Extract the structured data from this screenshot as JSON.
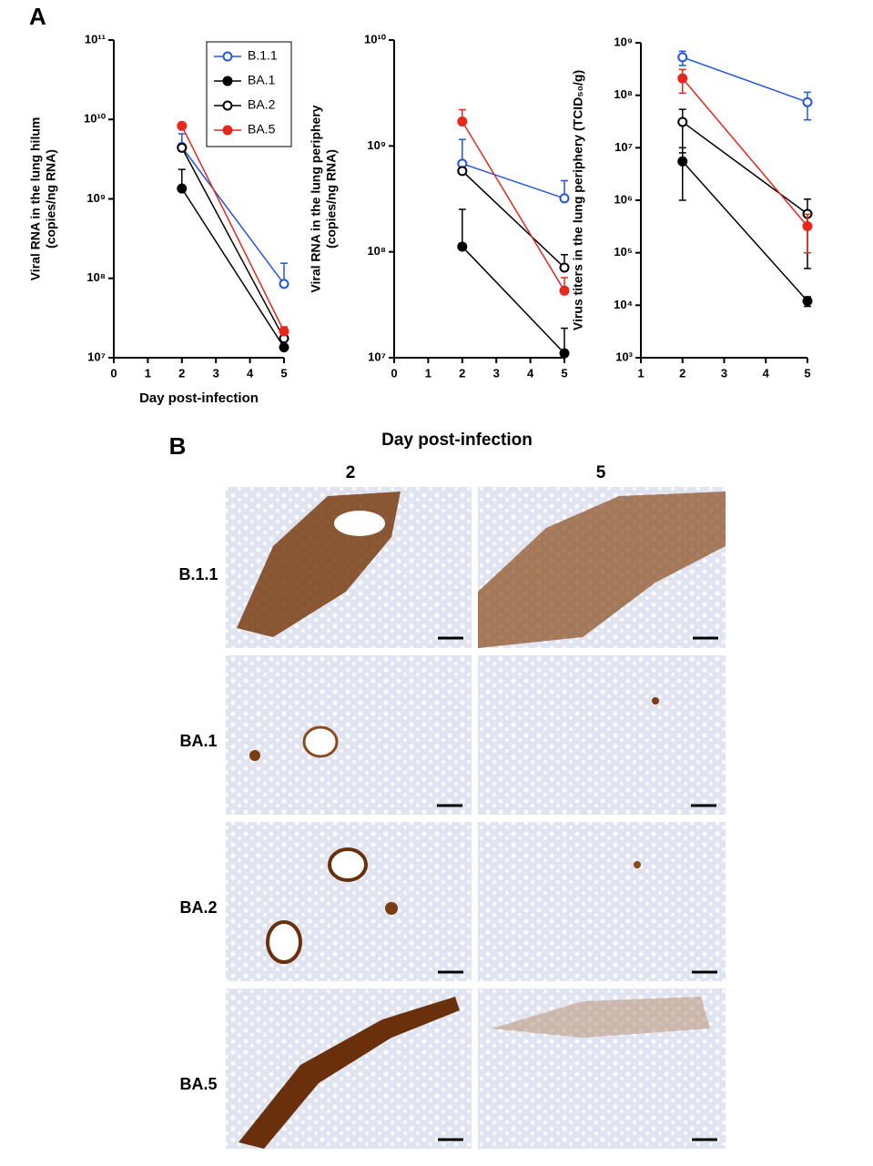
{
  "panel_a": {
    "label": "A"
  },
  "chart_data": [
    {
      "type": "line",
      "ylabel": [
        "Viral RNA in the lung hilum",
        "(copies/ng RNA)"
      ],
      "xlabel": "Day post-infection",
      "x": [
        2,
        5
      ],
      "xlim": [
        0,
        5
      ],
      "xticks": [
        0,
        1,
        2,
        3,
        4,
        5
      ],
      "log_y": true,
      "ylim": [
        10000000,
        100000000000
      ],
      "yticks": [
        {
          "value": 10000000,
          "label": "10⁷"
        },
        {
          "value": 100000000,
          "label": "10⁸"
        },
        {
          "value": 1000000000,
          "label": "10⁹"
        },
        {
          "value": 10000000000,
          "label": "10¹⁰"
        },
        {
          "value": 100000000000,
          "label": "10¹¹"
        }
      ],
      "error_bars": "up",
      "legend": "top-right",
      "series": [
        {
          "name": "B.1.1",
          "color": "#2255e0",
          "filled": false,
          "values": [
            4500000000,
            85000000
          ],
          "errors": [
            2100000000,
            70000000
          ]
        },
        {
          "name": "BA.1",
          "color": "#000000",
          "filled": true,
          "values": [
            1350000000,
            13500000
          ],
          "errors": [
            1000000000,
            0
          ]
        },
        {
          "name": "BA.2",
          "color": "#000000",
          "filled": false,
          "values": [
            4400000000,
            17500000
          ],
          "errors": [
            0,
            0
          ]
        },
        {
          "name": "BA.5",
          "color": "#e8261c",
          "filled": true,
          "values": [
            8300000000,
            21500000
          ],
          "errors": [
            0,
            3000000
          ]
        }
      ]
    },
    {
      "type": "line",
      "ylabel": [
        "Viral RNA in the lung periphery",
        "(copies/ng RNA)"
      ],
      "x": [
        2,
        5
      ],
      "xlim": [
        0,
        5
      ],
      "xticks": [
        0,
        1,
        2,
        3,
        4,
        5
      ],
      "log_y": true,
      "ylim": [
        10000000,
        10000000000
      ],
      "yticks": [
        {
          "value": 10000000,
          "label": "10⁷"
        },
        {
          "value": 100000000,
          "label": "10⁸"
        },
        {
          "value": 1000000000,
          "label": "10⁹"
        },
        {
          "value": 10000000000,
          "label": "10¹⁰"
        }
      ],
      "error_bars": "up",
      "series": [
        {
          "name": "B.1.1",
          "color": "#2255e0",
          "filled": false,
          "values": [
            680000000,
            320000000
          ],
          "errors": [
            470000000,
            150000000
          ]
        },
        {
          "name": "BA.1",
          "color": "#000000",
          "filled": true,
          "values": [
            112000000,
            11000000
          ],
          "errors": [
            140000000,
            8000000
          ]
        },
        {
          "name": "BA.2",
          "color": "#000000",
          "filled": false,
          "values": [
            580000000,
            71000000
          ],
          "errors": [
            0,
            23000000
          ]
        },
        {
          "name": "BA.5",
          "color": "#e8261c",
          "filled": true,
          "values": [
            1700000000,
            43000000
          ],
          "errors": [
            500000000,
            14000000
          ]
        }
      ]
    },
    {
      "type": "line",
      "ylabel": [
        "Virus titers in the lung periphery  (TCID₅₀/g)"
      ],
      "x": [
        2,
        5
      ],
      "xlim": [
        1,
        5
      ],
      "xticks": [
        1,
        2,
        3,
        4,
        5
      ],
      "log_y": true,
      "ylim": [
        1000,
        1000000000
      ],
      "yticks": [
        {
          "value": 1000,
          "label": "10³"
        },
        {
          "value": 10000,
          "label": "10⁴"
        },
        {
          "value": 100000,
          "label": "10⁵"
        },
        {
          "value": 1000000,
          "label": "10⁶"
        },
        {
          "value": 10000000,
          "label": "10⁷"
        },
        {
          "value": 100000000,
          "label": "10⁸"
        },
        {
          "value": 1000000000,
          "label": "10⁹"
        }
      ],
      "error_bars": "both",
      "series": [
        {
          "name": "B.1.1",
          "color": "#2255e0",
          "filled": false,
          "values": [
            530000000,
            74000000
          ],
          "errors": [
            160000000,
            40000000
          ]
        },
        {
          "name": "BA.1",
          "color": "#000000",
          "filled": true,
          "values": [
            5500000,
            12000
          ],
          "errors": [
            4500000,
            2500
          ]
        },
        {
          "name": "BA.2",
          "color": "#000000",
          "filled": false,
          "values": [
            31000000,
            550000
          ],
          "errors": [
            23000000,
            500000
          ]
        },
        {
          "name": "BA.5",
          "color": "#e8261c",
          "filled": true,
          "values": [
            210000000,
            320000
          ],
          "errors": [
            100000000,
            220000
          ]
        }
      ]
    }
  ],
  "panel_b": {
    "label": "B",
    "title": "Day post-infection",
    "columns": [
      "2",
      "5"
    ],
    "rows": [
      "B.1.1",
      "BA.1",
      "BA.2",
      "BA.5"
    ]
  }
}
